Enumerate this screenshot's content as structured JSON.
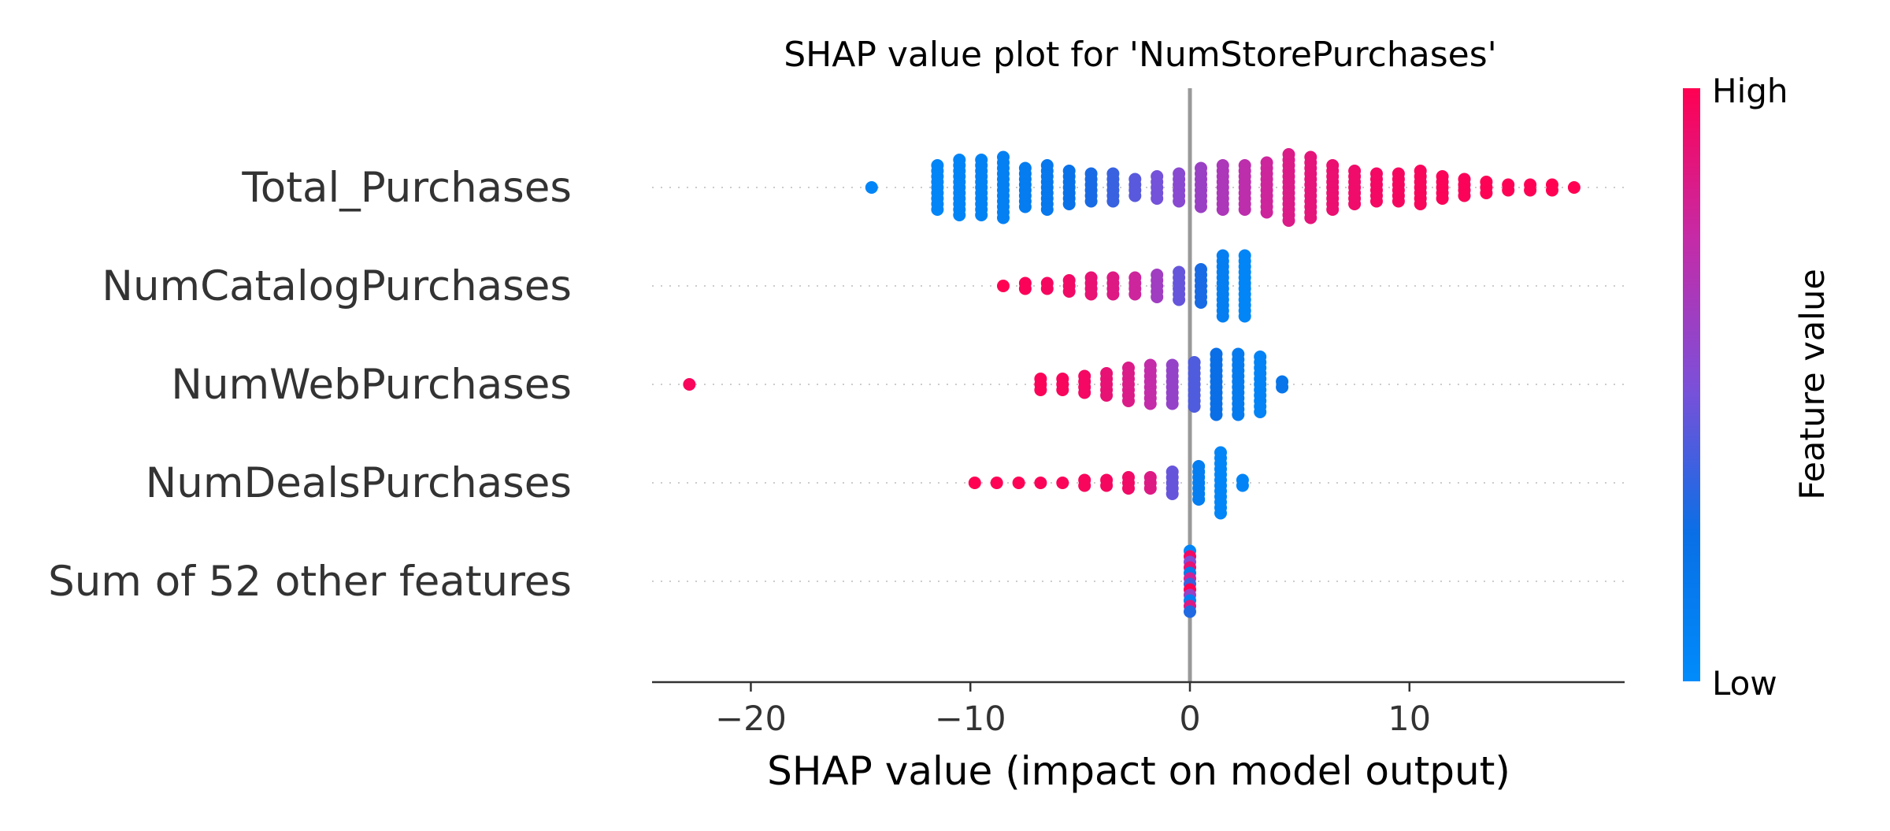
{
  "chart_data": {
    "type": "scatter",
    "subtype": "shap-beeswarm",
    "title": "SHAP value plot for 'NumStorePurchases'",
    "xlabel": "SHAP value (impact on model output)",
    "xlim": [
      -24.5,
      19.8
    ],
    "xticks": [
      -20,
      -10,
      0,
      10
    ],
    "xtick_labels": [
      "−20",
      "−10",
      "0",
      "10"
    ],
    "zero_line": true,
    "dotted_row_guides": true,
    "colorbar": {
      "title": "Feature value",
      "high_label": "High",
      "low_label": "Low",
      "high_color": "#ff0052",
      "low_color": "#008bfb"
    },
    "features": [
      {
        "name": "Total_Purchases",
        "points": [
          {
            "x": -14.5,
            "count": 1,
            "value": 0.05
          },
          {
            "x": -11.5,
            "count": 9,
            "value": 0.05
          },
          {
            "x": -10.5,
            "count": 11,
            "value": 0.06
          },
          {
            "x": -9.5,
            "count": 11,
            "value": 0.08
          },
          {
            "x": -8.5,
            "count": 12,
            "value": 0.1
          },
          {
            "x": -7.5,
            "count": 8,
            "value": 0.13
          },
          {
            "x": -6.5,
            "count": 9,
            "value": 0.17
          },
          {
            "x": -5.5,
            "count": 7,
            "value": 0.22
          },
          {
            "x": -4.5,
            "count": 6,
            "value": 0.28
          },
          {
            "x": -3.5,
            "count": 6,
            "value": 0.35
          },
          {
            "x": -2.5,
            "count": 4,
            "value": 0.42
          },
          {
            "x": -1.5,
            "count": 5,
            "value": 0.48
          },
          {
            "x": -0.5,
            "count": 6,
            "value": 0.54
          },
          {
            "x": 0.5,
            "count": 8,
            "value": 0.6
          },
          {
            "x": 1.5,
            "count": 9,
            "value": 0.66
          },
          {
            "x": 2.5,
            "count": 9,
            "value": 0.72
          },
          {
            "x": 3.5,
            "count": 10,
            "value": 0.78
          },
          {
            "x": 4.5,
            "count": 13,
            "value": 0.84
          },
          {
            "x": 5.5,
            "count": 12,
            "value": 0.88
          },
          {
            "x": 6.5,
            "count": 9,
            "value": 0.91
          },
          {
            "x": 7.5,
            "count": 7,
            "value": 0.93
          },
          {
            "x": 8.5,
            "count": 6,
            "value": 0.95
          },
          {
            "x": 9.5,
            "count": 6,
            "value": 0.96
          },
          {
            "x": 10.5,
            "count": 7,
            "value": 0.97
          },
          {
            "x": 11.5,
            "count": 5,
            "value": 0.98
          },
          {
            "x": 12.5,
            "count": 4,
            "value": 0.98
          },
          {
            "x": 13.5,
            "count": 3,
            "value": 0.99
          },
          {
            "x": 14.5,
            "count": 2,
            "value": 0.99
          },
          {
            "x": 15.5,
            "count": 2,
            "value": 0.99
          },
          {
            "x": 16.5,
            "count": 2,
            "value": 1.0
          },
          {
            "x": 17.5,
            "count": 1,
            "value": 1.0
          }
        ]
      },
      {
        "name": "NumCatalogPurchases",
        "points": [
          {
            "x": -8.5,
            "count": 1,
            "value": 1.0
          },
          {
            "x": -7.5,
            "count": 2,
            "value": 0.98
          },
          {
            "x": -6.5,
            "count": 2,
            "value": 0.96
          },
          {
            "x": -5.5,
            "count": 3,
            "value": 0.94
          },
          {
            "x": -4.5,
            "count": 4,
            "value": 0.9
          },
          {
            "x": -3.5,
            "count": 4,
            "value": 0.85
          },
          {
            "x": -2.5,
            "count": 4,
            "value": 0.78
          },
          {
            "x": -1.5,
            "count": 5,
            "value": 0.62
          },
          {
            "x": -0.5,
            "count": 6,
            "value": 0.45
          },
          {
            "x": 0.5,
            "count": 7,
            "value": 0.28
          },
          {
            "x": 1.5,
            "count": 12,
            "value": 0.12
          },
          {
            "x": 2.5,
            "count": 12,
            "value": 0.05
          }
        ]
      },
      {
        "name": "NumWebPurchases",
        "points": [
          {
            "x": -22.8,
            "count": 1,
            "value": 0.97
          },
          {
            "x": -6.8,
            "count": 3,
            "value": 0.98
          },
          {
            "x": -5.8,
            "count": 3,
            "value": 0.97
          },
          {
            "x": -4.8,
            "count": 4,
            "value": 0.95
          },
          {
            "x": -3.8,
            "count": 5,
            "value": 0.9
          },
          {
            "x": -2.8,
            "count": 7,
            "value": 0.84
          },
          {
            "x": -1.8,
            "count": 8,
            "value": 0.74
          },
          {
            "x": -0.8,
            "count": 8,
            "value": 0.58
          },
          {
            "x": 0.2,
            "count": 9,
            "value": 0.4
          },
          {
            "x": 1.2,
            "count": 12,
            "value": 0.25
          },
          {
            "x": 2.2,
            "count": 12,
            "value": 0.14
          },
          {
            "x": 3.2,
            "count": 11,
            "value": 0.07
          },
          {
            "x": 4.2,
            "count": 2,
            "value": 0.2
          }
        ]
      },
      {
        "name": "NumDealsPurchases",
        "points": [
          {
            "x": -9.8,
            "count": 1,
            "value": 1.0
          },
          {
            "x": -8.8,
            "count": 1,
            "value": 0.99
          },
          {
            "x": -7.8,
            "count": 1,
            "value": 0.99
          },
          {
            "x": -6.8,
            "count": 1,
            "value": 0.98
          },
          {
            "x": -5.8,
            "count": 1,
            "value": 0.98
          },
          {
            "x": -4.8,
            "count": 2,
            "value": 0.97
          },
          {
            "x": -3.8,
            "count": 2,
            "value": 0.96
          },
          {
            "x": -2.8,
            "count": 3,
            "value": 0.94
          },
          {
            "x": -1.8,
            "count": 3,
            "value": 0.85
          },
          {
            "x": -0.8,
            "count": 5,
            "value": 0.45
          },
          {
            "x": 0.4,
            "count": 7,
            "value": 0.12
          },
          {
            "x": 1.4,
            "count": 12,
            "value": 0.05
          },
          {
            "x": 2.4,
            "count": 2,
            "value": 0.06
          }
        ]
      },
      {
        "name": "Sum of 52 other features",
        "points": [
          {
            "x": 0.0,
            "count": 12,
            "value": 0.5,
            "mixed": true
          }
        ]
      }
    ]
  }
}
